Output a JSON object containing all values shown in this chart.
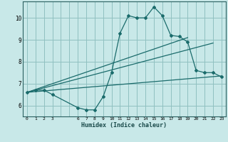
{
  "xlabel": "Humidex (Indice chaleur)",
  "bg_color": "#c8e8e8",
  "grid_color": "#90c0c0",
  "line_color": "#1a6b6b",
  "xlim": [
    -0.5,
    23.5
  ],
  "ylim": [
    5.5,
    10.75
  ],
  "xticks": [
    0,
    1,
    2,
    3,
    4,
    5,
    6,
    7,
    8,
    9,
    10,
    11,
    12,
    13,
    14,
    15,
    16,
    17,
    18,
    19,
    20,
    21,
    22,
    23
  ],
  "xtick_labels": [
    "0",
    "1",
    "2",
    "3",
    "",
    "",
    "6",
    "7",
    "8",
    "9",
    "10",
    "11",
    "12",
    "13",
    "14",
    "15",
    "16",
    "17",
    "18",
    "19",
    "20",
    "21",
    "22",
    "23"
  ],
  "yticks": [
    6,
    7,
    8,
    9,
    10
  ],
  "line1_x": [
    0,
    1,
    2,
    3,
    6,
    7,
    8,
    9,
    10,
    11,
    12,
    13,
    14,
    15,
    16,
    17,
    18,
    19,
    20,
    21,
    22,
    23
  ],
  "line1_y": [
    6.6,
    6.7,
    6.7,
    6.5,
    5.9,
    5.8,
    5.8,
    6.4,
    7.5,
    9.3,
    10.1,
    10.0,
    10.0,
    10.5,
    10.1,
    9.2,
    9.15,
    8.9,
    7.6,
    7.5,
    7.5,
    7.3
  ],
  "line2_x": [
    0,
    23
  ],
  "line2_y": [
    6.6,
    7.35
  ],
  "line3_x": [
    0,
    19
  ],
  "line3_y": [
    6.6,
    9.1
  ],
  "line4_x": [
    0,
    22
  ],
  "line4_y": [
    6.6,
    8.85
  ]
}
